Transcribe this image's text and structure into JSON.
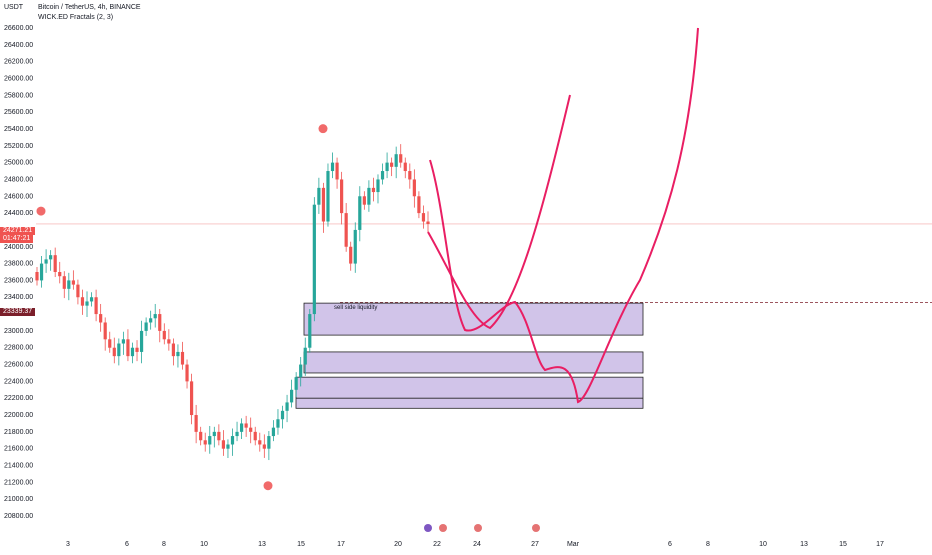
{
  "header": {
    "currency": "USDT",
    "title": "Bitcoin / TetherUS, 4h, BINANCE",
    "indicator": "WICK.ED Fractals (2, 3)"
  },
  "price_tags": {
    "current": "24271.21",
    "countdown": "01:47:21",
    "level": "23339.37"
  },
  "annotation": "sell side liquidity",
  "colors": {
    "up": "#26a69a",
    "down": "#ef5350",
    "zone": "#b39ddb",
    "path": "#e91e63",
    "fractal": "#f05a5a"
  },
  "chart_data": {
    "type": "candlestick",
    "symbol": "Bitcoin / TetherUS",
    "timeframe": "4h",
    "exchange": "BINANCE",
    "ylim": [
      20800,
      26600
    ],
    "yticks": [
      20800,
      21000,
      21200,
      21400,
      21600,
      21800,
      22000,
      22200,
      22400,
      22600,
      22800,
      23000,
      23200,
      23400,
      23600,
      23800,
      24000,
      24200,
      24400,
      24600,
      24800,
      25000,
      25200,
      25400,
      25600,
      25800,
      26000,
      26200,
      26400,
      26600
    ],
    "xticks": [
      "3",
      "6",
      "8",
      "10",
      "13",
      "15",
      "17",
      "20",
      "22",
      "24",
      "27",
      "Mar",
      "6",
      "8",
      "10",
      "13",
      "15",
      "17"
    ],
    "horizontal_levels": [
      24271.21,
      23339.37
    ],
    "zones": [
      {
        "label": "sell side liquidity",
        "top": 23330,
        "bottom": 22950
      },
      {
        "label": "",
        "top": 22750,
        "bottom": 22500
      },
      {
        "label": "",
        "top": 22450,
        "bottom": 22080
      }
    ],
    "fractal_markers": [
      24400,
      25380,
      21160
    ],
    "close_path": [
      {
        "seg": "projection-a",
        "points": [
          [
            25070,
            "a"
          ],
          [
            23100,
            "b"
          ],
          [
            23460,
            "c"
          ],
          [
            22700,
            "d"
          ],
          [
            22280,
            "e"
          ],
          [
            23330,
            "f"
          ],
          [
            26580,
            "g"
          ]
        ]
      },
      {
        "seg": "projection-b",
        "points": [
          [
            24310,
            "a"
          ],
          [
            23150,
            "b"
          ],
          [
            24000,
            "c"
          ],
          [
            25820,
            "d"
          ]
        ]
      }
    ],
    "candles_close": [
      23600,
      23800,
      23850,
      23900,
      23700,
      23650,
      23500,
      23600,
      23550,
      23400,
      23300,
      23350,
      23400,
      23200,
      23100,
      22900,
      22800,
      22700,
      22850,
      22900,
      22700,
      22800,
      22750,
      23000,
      23100,
      23150,
      23200,
      23000,
      22900,
      22850,
      22700,
      22750,
      22600,
      22400,
      22000,
      21800,
      21700,
      21650,
      21750,
      21800,
      21700,
      21600,
      21650,
      21750,
      21800,
      21900,
      21850,
      21800,
      21700,
      21650,
      21600,
      21750,
      21850,
      21950,
      22050,
      22150,
      22300,
      22450,
      22600,
      22800,
      23200,
      24500,
      24700,
      24300,
      24900,
      25000,
      24800,
      24400,
      24000,
      23800,
      24200,
      24600,
      24500,
      24700,
      24650,
      24800,
      24900,
      25000,
      24950,
      25100,
      25000,
      24900,
      24800,
      24600,
      24400,
      24300,
      24271
    ]
  }
}
